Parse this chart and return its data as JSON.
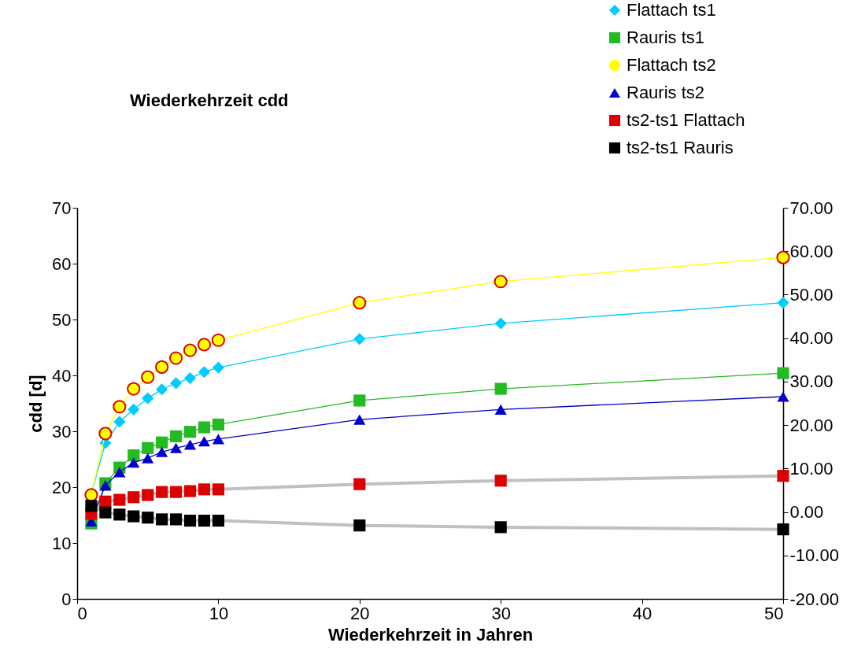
{
  "chart_data": {
    "type": "line",
    "title": "Wiederkehrzeit cdd",
    "xlabel": "Wiederkehrzeit in Jahren",
    "ylabel": "cdd [d]",
    "x": [
      1,
      2,
      3,
      4,
      5,
      6,
      7,
      8,
      9,
      10,
      20,
      30,
      50
    ],
    "xlim": [
      0,
      50
    ],
    "xticks": [
      0,
      10,
      20,
      30,
      40,
      50
    ],
    "ylim": [
      0,
      70
    ],
    "yticks": [
      0,
      10,
      20,
      30,
      40,
      50,
      60,
      70
    ],
    "y2lim": [
      -20,
      70
    ],
    "y2ticks": [
      {
        "value": -20,
        "label": "-20.00"
      },
      {
        "value": -10,
        "label": "-10.00"
      },
      {
        "value": 0,
        "label": "0.00"
      },
      {
        "value": 10,
        "label": "10.00"
      },
      {
        "value": 20,
        "label": "20.00"
      },
      {
        "value": 30,
        "label": "30.00"
      },
      {
        "value": 40,
        "label": "40.00"
      },
      {
        "value": 50,
        "label": "50.00"
      },
      {
        "value": 60,
        "label": "60.00"
      },
      {
        "value": 70,
        "label": "70.00"
      }
    ],
    "grid": false,
    "legend": "top right",
    "series": [
      {
        "name": "Flattach ts1",
        "color": "#00ccff",
        "marker": "diamond",
        "values": [
          18.8,
          27.9,
          31.7,
          33.9,
          35.9,
          37.5,
          38.6,
          39.5,
          40.6,
          41.4,
          46.5,
          49.3,
          53.0
        ]
      },
      {
        "name": "Rauris ts1",
        "color": "#22bb22",
        "marker": "square",
        "values": [
          13.5,
          20.7,
          23.5,
          25.7,
          27.0,
          28.0,
          29.1,
          29.9,
          30.7,
          31.2,
          35.5,
          37.6,
          40.4
        ]
      },
      {
        "name": "Flattach ts2",
        "color": "#ffff00",
        "marker": "circle",
        "values": [
          18.6,
          29.6,
          34.4,
          37.6,
          39.7,
          41.5,
          43.1,
          44.5,
          45.5,
          46.3,
          53.0,
          56.8,
          61.1
        ]
      },
      {
        "name": "Rauris ts2",
        "color": "#0000cc",
        "marker": "triangle",
        "values": [
          13.9,
          20.3,
          22.7,
          24.4,
          25.2,
          26.3,
          27.0,
          27.6,
          28.2,
          28.6,
          32.1,
          33.9,
          36.2
        ]
      },
      {
        "name": "ts2-ts1 Flattach",
        "color": "#dd0000",
        "marker": "square",
        "axis": "y2",
        "values": [
          -0.4,
          2.4,
          2.8,
          3.4,
          3.9,
          4.6,
          4.6,
          4.8,
          5.2,
          5.2,
          6.4,
          7.2,
          8.3
        ]
      },
      {
        "name": "ts2-ts1 Rauris",
        "color": "#000000",
        "marker": "square",
        "axis": "y2",
        "values": [
          1.4,
          -0.1,
          -0.6,
          -1.0,
          -1.3,
          -1.7,
          -1.7,
          -2.0,
          -2.0,
          -2.0,
          -3.1,
          -3.5,
          -4.0
        ]
      }
    ]
  }
}
